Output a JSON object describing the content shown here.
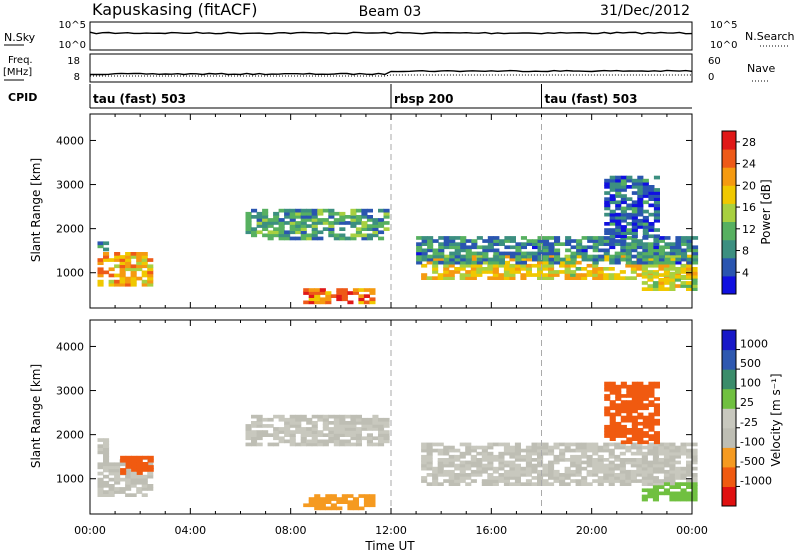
{
  "header": {
    "station": "Kapuskasing (fitACF)",
    "beam": "Beam 03",
    "date": "31/Dec/2012"
  },
  "strip": {
    "nsky_label": "N.Sky",
    "nsky_ticks": [
      "10^5",
      "10^0"
    ],
    "nsearch_label": "N.Search",
    "nsearch_ticks": [
      "10^5",
      "10^0"
    ],
    "freq_label": "Freq.",
    "freq_unit": "[MHz]",
    "freq_ticks": [
      "18",
      "8"
    ],
    "nave_label": "Nave",
    "nave_ticks": [
      "60",
      "0"
    ],
    "cpid_label": "CPID",
    "cpid_segments": [
      {
        "label": "tau (fast) 503",
        "start_hour": 0
      },
      {
        "label": "rbsp 200",
        "start_hour": 12
      },
      {
        "label": "tau (fast) 503",
        "start_hour": 18
      }
    ]
  },
  "colors": {
    "power_scale": [
      "#1010e0",
      "#2a55b0",
      "#3c8f80",
      "#57b060",
      "#a8d040",
      "#f0c800",
      "#f59a10",
      "#ee5a18",
      "#e01818"
    ],
    "velocity_scale": [
      "#e01010",
      "#f05a10",
      "#f59a20",
      "#bebeb4",
      "#c8c8be",
      "#70c040",
      "#3a8c6a",
      "#2e58b0",
      "#1818c8"
    ],
    "grid": "#aaaaaa"
  },
  "chart_data": [
    {
      "type": "heatmap",
      "panel": "power",
      "ylabel": "Slant Range [km]",
      "xlabel": "",
      "x_ticks": [
        "00:00",
        "04:00",
        "08:00",
        "12:00",
        "16:00",
        "20:00",
        "00:00"
      ],
      "x_range_hours": [
        0,
        24
      ],
      "y_ticks": [
        "1000",
        "2000",
        "3000",
        "4000"
      ],
      "ylim": [
        200,
        4600
      ],
      "colorbar_label": "Power [dB]",
      "colorbar_ticks": [
        "4",
        "8",
        "12",
        "16",
        "20",
        "24",
        "28"
      ],
      "colorbar_range": [
        0,
        30
      ],
      "echo_regions": [
        {
          "t0": 0.3,
          "t1": 2.5,
          "r0": 700,
          "r1": 1450,
          "value": 20
        },
        {
          "t0": 0.3,
          "t1": 0.7,
          "r0": 1500,
          "r1": 1800,
          "value": 8
        },
        {
          "t0": 6.2,
          "t1": 11.9,
          "r0": 1750,
          "r1": 2450,
          "value": 10
        },
        {
          "t0": 8.5,
          "t1": 11.2,
          "r0": 300,
          "r1": 600,
          "value": 24
        },
        {
          "t0": 13.2,
          "t1": 24.0,
          "r0": 850,
          "r1": 1350,
          "value": 18
        },
        {
          "t0": 22.0,
          "t1": 24.0,
          "r0": 600,
          "r1": 1000,
          "value": 16
        },
        {
          "t0": 13.0,
          "t1": 24.0,
          "r0": 1200,
          "r1": 1800,
          "value": 8
        },
        {
          "t0": 20.5,
          "t1": 22.5,
          "r0": 1800,
          "r1": 3200,
          "value": 6
        }
      ]
    },
    {
      "type": "heatmap",
      "panel": "velocity",
      "ylabel": "Slant Range [km]",
      "xlabel": "Time UT",
      "x_ticks": [
        "00:00",
        "04:00",
        "08:00",
        "12:00",
        "16:00",
        "20:00",
        "00:00"
      ],
      "x_range_hours": [
        0,
        24
      ],
      "y_ticks": [
        "1000",
        "2000",
        "3000",
        "4000"
      ],
      "ylim": [
        200,
        4600
      ],
      "colorbar_label": "Velocity [m s⁻¹]",
      "colorbar_ticks": [
        "1000",
        "500",
        "100",
        "25",
        "-25",
        "-100",
        "-500",
        "-1000"
      ],
      "echo_regions": [
        {
          "t0": 0.3,
          "t1": 2.5,
          "r0": 600,
          "r1": 1450,
          "value": 0
        },
        {
          "t0": 1.2,
          "t1": 2.5,
          "r0": 1100,
          "r1": 1500,
          "value": -200
        },
        {
          "t0": 0.3,
          "t1": 0.7,
          "r0": 1500,
          "r1": 1900,
          "value": 0
        },
        {
          "t0": 6.2,
          "t1": 11.9,
          "r0": 1750,
          "r1": 2450,
          "value": 0
        },
        {
          "t0": 8.5,
          "t1": 11.2,
          "r0": 300,
          "r1": 650,
          "value": -50
        },
        {
          "t0": 13.2,
          "t1": 24.0,
          "r0": 850,
          "r1": 1400,
          "value": 0
        },
        {
          "t0": 13.2,
          "t1": 24.0,
          "r0": 1400,
          "r1": 1800,
          "value": 0
        },
        {
          "t0": 22.0,
          "t1": 24.0,
          "r0": 500,
          "r1": 900,
          "value": 50
        },
        {
          "t0": 20.5,
          "t1": 22.5,
          "r0": 1800,
          "r1": 3200,
          "value": -150
        }
      ]
    }
  ]
}
